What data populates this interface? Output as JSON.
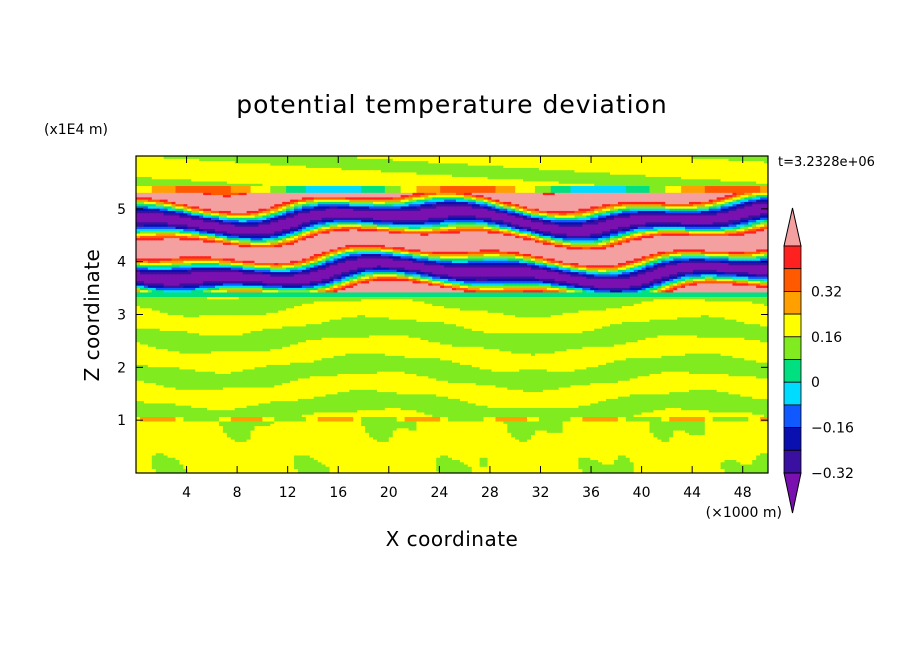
{
  "chart_data": {
    "type": "heatmap",
    "subtype": "filled-contour",
    "title": "potential temperature deviation",
    "xlabel": "X coordinate",
    "ylabel": "Z coordinate",
    "x_unit": "(×1000 m)",
    "y_unit": "(x1E4 m)",
    "time_label": "t=3.2328e+06",
    "xlim": [
      0,
      50
    ],
    "ylim": [
      0,
      6
    ],
    "x_ticks": [
      4,
      8,
      12,
      16,
      20,
      24,
      28,
      32,
      36,
      40,
      44,
      48
    ],
    "y_ticks": [
      1,
      2,
      3,
      4,
      5
    ],
    "colorbar": {
      "levels": [
        -0.48,
        -0.4,
        -0.32,
        -0.24,
        -0.16,
        -0.08,
        0,
        0.08,
        0.16,
        0.24,
        0.32,
        0.4,
        0.48
      ],
      "labeled_levels": [
        "0.32",
        "0.16",
        "0",
        "−0.16",
        "−0.32"
      ],
      "colors": [
        "#7a10b0",
        "#3a10a0",
        "#0a10b0",
        "#1058ff",
        "#00dcff",
        "#00e080",
        "#80ec20",
        "#ffff00",
        "#ffa000",
        "#ff5a00",
        "#ff2020",
        "#f4a0a0"
      ],
      "extend": "both"
    },
    "bands": [
      {
        "z_start": 0.0,
        "z_end": 1.0,
        "value": 0.04,
        "note": "near-zero positive with pockets of near-zero negative"
      },
      {
        "z_start": 1.0,
        "z_end": 1.05,
        "value": 0.1,
        "note": "thin oscillating layer"
      },
      {
        "z_start": 1.05,
        "z_end": 3.35,
        "value": 0.02,
        "note": "alternating near-zero layers"
      },
      {
        "z_start": 3.35,
        "z_end": 3.45,
        "value": -0.1,
        "note": "cyan layer"
      },
      {
        "z_start": 3.45,
        "z_end": 5.3,
        "value": 0.0,
        "note": "strong alternating layers between -0.48 and +0.48"
      },
      {
        "z_start": 5.3,
        "z_end": 6.0,
        "value": 0.02,
        "note": "near-zero layers"
      }
    ]
  }
}
